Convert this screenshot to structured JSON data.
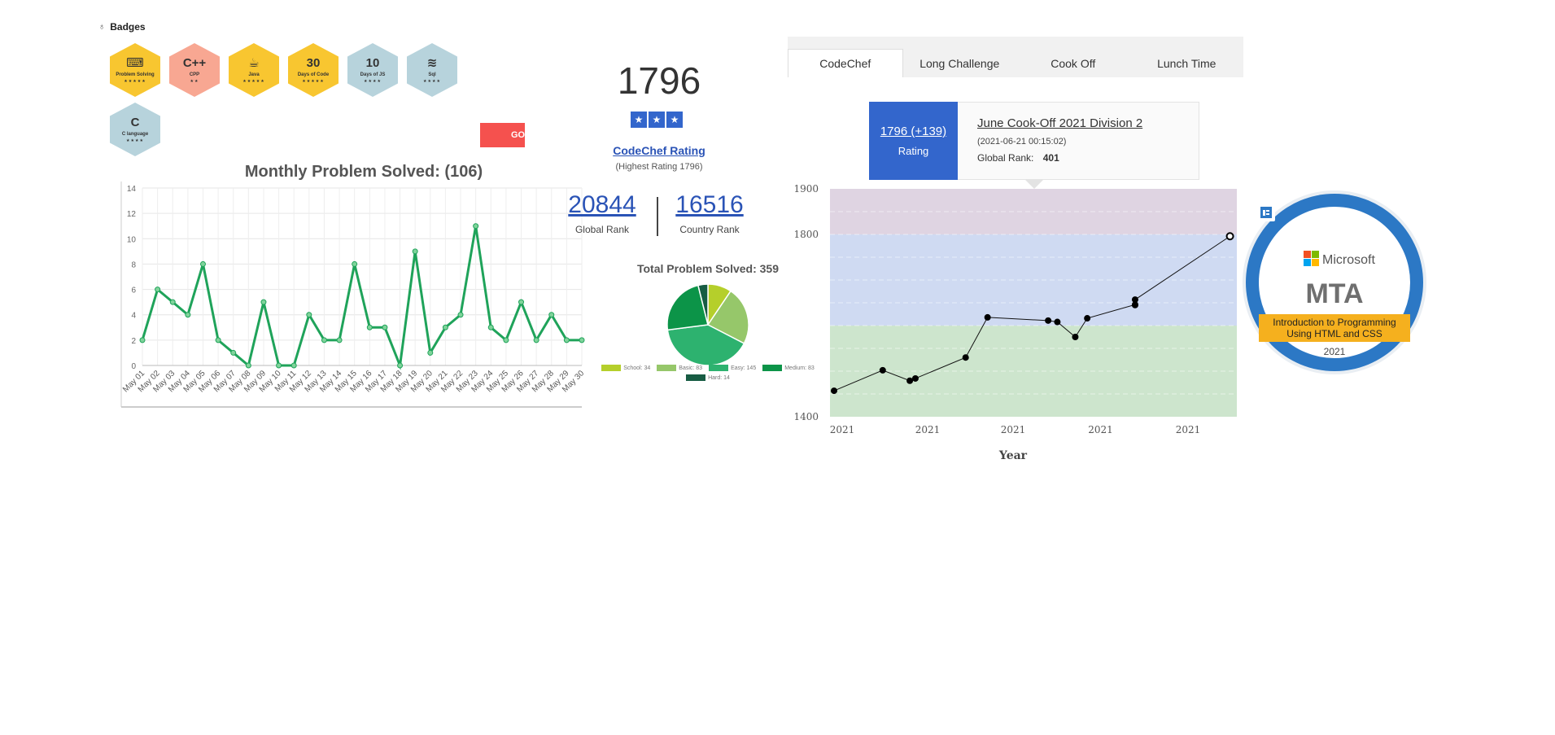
{
  "badges": {
    "title": "Badges",
    "items": [
      {
        "icon": "code-icon",
        "glyph": "⌨",
        "name": "Problem Solving",
        "stars": "★★★★★",
        "color": "#f8c630"
      },
      {
        "icon": "cpp-icon",
        "glyph": "C++",
        "name": "CPP",
        "stars": "★★",
        "color": "#f8a792"
      },
      {
        "icon": "java-icon",
        "glyph": "☕",
        "name": "Java",
        "stars": "★★★★★",
        "color": "#f8c630"
      },
      {
        "icon": "days-code-icon",
        "glyph": "30",
        "name": "Days of Code",
        "stars": "★★★★★",
        "color": "#f8c630"
      },
      {
        "icon": "days-js-icon",
        "glyph": "10",
        "name": "Days of JS",
        "stars": "★★★★",
        "color": "#b7d3dc"
      },
      {
        "icon": "database-icon",
        "glyph": "≋",
        "name": "Sql",
        "stars": "★★★★",
        "color": "#b7d3dc"
      },
      {
        "icon": "c-language-icon",
        "glyph": "C",
        "name": "C language",
        "stars": "★★★★",
        "color": "#b7d3dc"
      }
    ],
    "go_label": "GO"
  },
  "monthly": {
    "title": "Monthly Problem Solved: (106)"
  },
  "rating": {
    "value": "1796",
    "stars": [
      "★",
      "★",
      "★"
    ],
    "link_label": "CodeChef Rating",
    "highest": "(Highest Rating 1796)",
    "global_rank": "20844",
    "global_rank_label": "Global Rank",
    "country_rank": "16516",
    "country_rank_label": "Country Rank"
  },
  "tabs": [
    "CodeChef",
    "Long Challenge",
    "Cook Off",
    "Lunch Time"
  ],
  "tooltip": {
    "rating_change": "1796 (+139)",
    "rating_label": "Rating",
    "contest": "June Cook-Off 2021 Division 2",
    "date": "(2021-06-21 00:15:02)",
    "global_rank_label": "Global Rank:",
    "global_rank_value": "401"
  },
  "mta": {
    "brand": "Microsoft",
    "title": "MTA",
    "subtitle_line1": "Introduction to Programming",
    "subtitle_line2": "Using HTML and CSS",
    "year": "2021"
  },
  "chart_data": [
    {
      "type": "line",
      "title": "Monthly Problem Solved: (106)",
      "categories": [
        "May 01",
        "May 02",
        "May 03",
        "May 04",
        "May 05",
        "May 06",
        "May 07",
        "May 08",
        "May 09",
        "May 10",
        "May 11",
        "May 12",
        "May 13",
        "May 14",
        "May 15",
        "May 16",
        "May 17",
        "May 18",
        "May 19",
        "May 20",
        "May 21",
        "May 22",
        "May 23",
        "May 24",
        "May 25",
        "May 26",
        "May 27",
        "May 28",
        "May 29",
        "May 30"
      ],
      "values": [
        2,
        6,
        5,
        4,
        8,
        2,
        1,
        0,
        5,
        0,
        0,
        4,
        2,
        2,
        8,
        3,
        3,
        0,
        9,
        1,
        3,
        4,
        11,
        3,
        2,
        5,
        2,
        4,
        2,
        2
      ],
      "ylim": [
        0,
        14
      ],
      "yticks": [
        0,
        2,
        4,
        6,
        8,
        10,
        12,
        14
      ],
      "color": "#1fa35a",
      "grid": true
    },
    {
      "type": "pie",
      "title": "Total Problem Solved: 359",
      "categories": [
        "School",
        "Basic",
        "Easy",
        "Medium",
        "Hard"
      ],
      "values": [
        34,
        83,
        145,
        83,
        14
      ],
      "legend_labels": [
        "School: 34",
        "Basic: 83",
        "Easy: 145",
        "Medium: 83",
        "Hard: 14"
      ],
      "colors": [
        "#b5cf2b",
        "#96c76a",
        "#2db26f",
        "#0c9448",
        "#175c43"
      ],
      "legend": "bottom"
    },
    {
      "type": "line",
      "x": [
        "2021-01",
        "2021-02",
        "2021-02",
        "2021-03",
        "2021-03",
        "2021-03",
        "2021-04",
        "2021-04",
        "2021-04",
        "2021-05",
        "2021-05",
        "2021-05",
        "2021-06",
        "2021-06"
      ],
      "values": [
        1457,
        1502,
        1479,
        1484,
        1530,
        1618,
        1611,
        1608,
        1575,
        1616,
        1646,
        1645,
        1657,
        1796
      ],
      "ylim": [
        1400,
        1900
      ],
      "yticks": [
        1400,
        1800,
        1900
      ],
      "xtick_labels": [
        "2021",
        "2021",
        "2021",
        "2021",
        "2021"
      ],
      "xlabel": "Year",
      "bands": [
        {
          "from": 1400,
          "to": 1600,
          "color": "#cde5cd"
        },
        {
          "from": 1600,
          "to": 1800,
          "color": "#cfdaf2"
        },
        {
          "from": 1800,
          "to": 1900,
          "color": "#dfd4e2"
        }
      ]
    }
  ]
}
